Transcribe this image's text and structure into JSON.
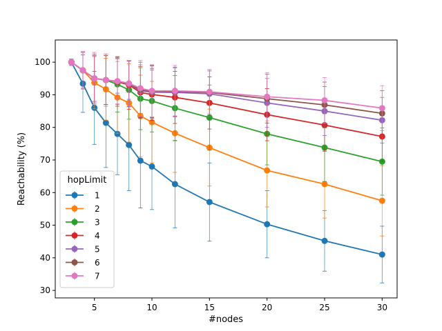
{
  "chart_data": {
    "type": "line",
    "title": "",
    "xlabel": "#nodes",
    "ylabel": "Reachability (%)",
    "xlim": [
      1.6,
      31.3
    ],
    "ylim": [
      27.7,
      106.8
    ],
    "xticks": [
      5,
      10,
      15,
      20,
      25,
      30
    ],
    "yticks": [
      30,
      40,
      50,
      60,
      70,
      80,
      90,
      100
    ],
    "grid": false,
    "error_bars": true,
    "legend": {
      "title": "hopLimit",
      "placement": "lower-left"
    },
    "x": [
      3,
      4,
      5,
      6,
      7,
      8,
      9,
      10,
      12,
      15,
      20,
      25,
      30
    ],
    "series": [
      {
        "name": "1",
        "color": "#1f77b4",
        "values": [
          100,
          93.4,
          86.0,
          81.4,
          78.0,
          74.6,
          69.8,
          68.0,
          62.6,
          57.1,
          50.3,
          45.2,
          41.0
        ],
        "errors": [
          1.0,
          8.8,
          11.2,
          13.7,
          12.5,
          14.0,
          14.5,
          13.2,
          13.4,
          12.0,
          10.3,
          9.3,
          8.7
        ]
      },
      {
        "name": "2",
        "color": "#ff7f0e",
        "values": [
          100,
          97.5,
          93.7,
          91.7,
          89.2,
          87.5,
          83.5,
          81.6,
          78.2,
          73.8,
          66.8,
          62.6,
          57.5
        ],
        "errors": [
          1.0,
          5.5,
          8.0,
          9.5,
          11.0,
          12.0,
          12.5,
          12.5,
          12.0,
          11.8,
          11.2,
          10.4,
          10.8
        ]
      },
      {
        "name": "3",
        "color": "#2ca02c",
        "values": [
          100,
          97.5,
          95.0,
          94.5,
          93.2,
          91.5,
          88.8,
          88.1,
          85.9,
          83.0,
          78.0,
          73.8,
          69.5
        ],
        "errors": [
          1.0,
          5.5,
          7.0,
          8.0,
          8.5,
          9.0,
          9.5,
          9.5,
          10.0,
          10.0,
          9.5,
          10.4,
          10.3
        ]
      },
      {
        "name": "4",
        "color": "#d62728",
        "values": [
          100,
          97.5,
          95.0,
          94.5,
          94.0,
          93.0,
          90.7,
          90.1,
          89.2,
          87.5,
          83.9,
          80.7,
          77.2
        ],
        "errors": [
          1.0,
          5.5,
          7.0,
          7.5,
          7.5,
          7.5,
          8.0,
          8.0,
          8.0,
          8.0,
          8.0,
          8.0,
          7.5
        ]
      },
      {
        "name": "5",
        "color": "#9467bd",
        "values": [
          100,
          97.5,
          95.0,
          94.5,
          94.1,
          93.3,
          91.2,
          90.8,
          90.7,
          90.3,
          87.5,
          85.0,
          82.2
        ],
        "errors": [
          1.0,
          5.5,
          7.0,
          7.5,
          7.0,
          7.0,
          8.0,
          8.0,
          7.5,
          7.0,
          7.5,
          7.5,
          7.0
        ]
      },
      {
        "name": "6",
        "color": "#8c564b",
        "values": [
          100,
          97.5,
          95.0,
          94.5,
          94.1,
          93.4,
          91.5,
          91.0,
          91.0,
          90.7,
          88.8,
          86.9,
          84.3
        ],
        "errors": [
          1.0,
          5.5,
          7.5,
          7.5,
          7.0,
          7.0,
          8.5,
          8.0,
          7.5,
          7.0,
          7.5,
          7.0,
          7.0
        ]
      },
      {
        "name": "7",
        "color": "#e377c2",
        "values": [
          100,
          97.5,
          95.0,
          94.5,
          94.2,
          93.5,
          92.0,
          91.2,
          91.2,
          90.9,
          89.4,
          88.3,
          85.9
        ],
        "errors": [
          1.0,
          5.8,
          8.0,
          8.0,
          7.0,
          7.0,
          8.5,
          8.0,
          7.8,
          6.8,
          7.4,
          7.0,
          6.9
        ]
      }
    ]
  }
}
